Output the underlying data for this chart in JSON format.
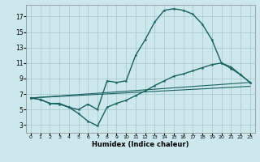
{
  "xlabel": "Humidex (Indice chaleur)",
  "background_color": "#cce8ec",
  "grid_color": "#aacccc",
  "line_color": "#1a6060",
  "xlim": [
    -0.5,
    23.5
  ],
  "ylim": [
    2,
    18.5
  ],
  "xticks": [
    0,
    1,
    2,
    3,
    4,
    5,
    6,
    7,
    8,
    9,
    10,
    11,
    12,
    13,
    14,
    15,
    16,
    17,
    18,
    19,
    20,
    21,
    22,
    23
  ],
  "yticks": [
    3,
    5,
    7,
    9,
    11,
    13,
    15,
    17
  ],
  "line1_x": [
    0,
    1,
    2,
    3,
    4,
    5,
    6,
    7,
    8,
    9,
    10,
    11,
    12,
    13,
    14,
    15,
    16,
    17,
    18,
    19,
    20,
    21,
    22,
    23
  ],
  "line1_y": [
    6.5,
    6.3,
    5.8,
    5.8,
    5.3,
    5.0,
    5.7,
    5.0,
    8.7,
    8.5,
    8.7,
    12.0,
    14.0,
    16.3,
    17.8,
    18.0,
    17.8,
    17.3,
    16.0,
    14.0,
    11.0,
    10.5,
    9.5,
    8.5
  ],
  "line2_x": [
    0,
    1,
    2,
    3,
    4,
    5,
    6,
    7,
    8,
    9,
    10,
    11,
    12,
    13,
    14,
    15,
    16,
    17,
    18,
    19,
    20,
    21,
    22,
    23
  ],
  "line2_y": [
    6.5,
    6.3,
    5.8,
    5.7,
    5.3,
    4.5,
    3.5,
    2.9,
    5.3,
    5.8,
    6.2,
    6.8,
    7.4,
    8.1,
    8.7,
    9.3,
    9.6,
    10.0,
    10.4,
    10.8,
    11.0,
    10.3,
    9.5,
    8.5
  ],
  "line3_x": [
    0,
    23
  ],
  "line3_y": [
    6.5,
    8.5
  ],
  "line4_x": [
    0,
    23
  ],
  "line4_y": [
    6.5,
    8.0
  ]
}
